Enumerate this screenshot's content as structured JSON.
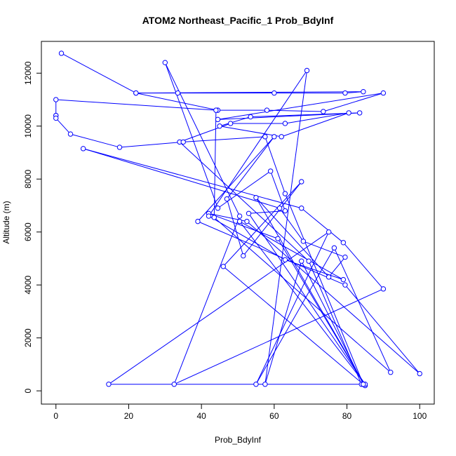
{
  "chart_data": {
    "type": "line",
    "title": "ATOM2 Northeast_Pacific_1 Prob_BdyInf",
    "xlabel": "Prob_BdyInf",
    "ylabel": "Altitude (m)",
    "xlim": [
      -4,
      104
    ],
    "ylim": [
      -500,
      13200
    ],
    "xticks": [
      0,
      20,
      40,
      60,
      80,
      100
    ],
    "yticks": [
      0,
      2000,
      4000,
      6000,
      8000,
      10000,
      12000
    ],
    "grid": false,
    "series_color": "#0000ff",
    "marker": "open-circle",
    "series": [
      {
        "x": [
          1.5,
          22,
          33.5,
          60,
          79.5,
          84.5,
          22,
          44.5,
          58,
          73.5,
          90,
          44.5,
          83.5,
          53.5,
          45,
          62,
          80.5,
          63,
          48,
          34,
          69.5,
          84,
          14.5,
          75,
          55,
          76.5,
          92,
          43.5,
          44,
          0,
          0,
          0,
          0,
          4,
          17.5,
          35,
          57.5,
          63,
          84.5,
          46,
          67.5,
          51.5,
          47,
          60,
          39,
          79.5,
          100,
          52.5,
          42,
          61,
          85,
          55,
          75,
          79.5,
          68,
          61.5,
          7.5,
          67.5,
          79,
          90,
          32.5,
          50.5,
          30,
          44.5,
          59,
          63,
          53,
          85,
          50.5,
          79,
          63,
          42,
          69,
          57.5,
          67.5,
          84.5
        ],
        "y": [
          12750,
          11250,
          11250,
          11250,
          11250,
          11300,
          11250,
          10600,
          10600,
          10550,
          11250,
          10250,
          10500,
          10350,
          10000,
          9600,
          10500,
          10100,
          10100,
          9400,
          4900,
          250,
          250,
          6000,
          250,
          5400,
          700,
          6550,
          10600,
          11000,
          10400,
          10400,
          10300,
          9700,
          9200,
          9400,
          9600,
          7450,
          250,
          4700,
          7900,
          5100,
          7250,
          9600,
          6400,
          4000,
          650,
          6400,
          6700,
          5750,
          200,
          7300,
          4300,
          5050,
          5650,
          6900,
          9150,
          6900,
          5600,
          3850,
          250,
          6600,
          12400,
          6900,
          8300,
          6800,
          6700,
          250,
          6400,
          4200,
          4950,
          6600,
          12100,
          250,
          4900,
          250
        ]
      }
    ]
  }
}
